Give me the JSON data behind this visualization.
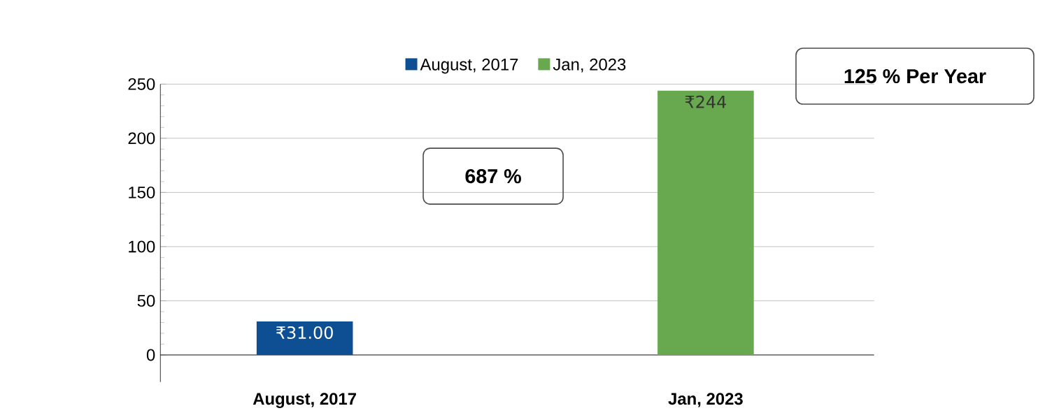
{
  "chart_data": {
    "type": "bar",
    "categories": [
      "August, 2017",
      "Jan, 2023"
    ],
    "series": [
      {
        "name": "August, 2017",
        "color": "#0e4f94",
        "values": [
          31,
          null
        ],
        "value_labels": [
          "₹31.00",
          null
        ]
      },
      {
        "name": "Jan, 2023",
        "color": "#68a84f",
        "values": [
          null,
          244
        ],
        "value_labels": [
          null,
          "₹244"
        ]
      }
    ],
    "ylim": [
      -25,
      250
    ],
    "yticks": [
      0,
      50,
      100,
      150,
      200,
      250
    ],
    "grid": "y",
    "legend": "top",
    "annotations": [
      "687 %",
      "125 % Per Year"
    ]
  }
}
